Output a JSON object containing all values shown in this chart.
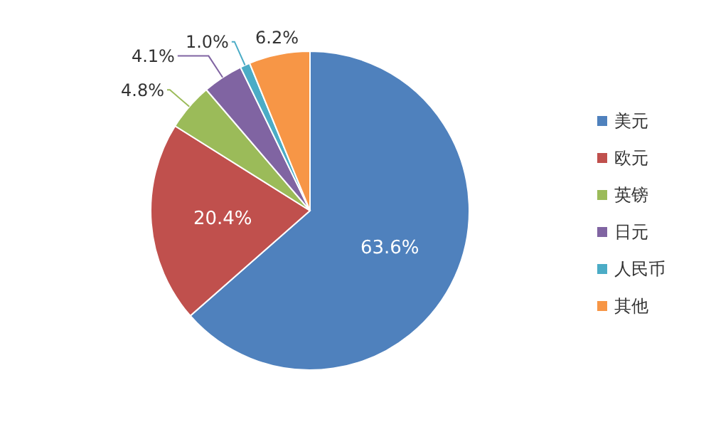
{
  "chart_data": {
    "type": "pie",
    "categories": [
      "美元",
      "欧元",
      "英镑",
      "日元",
      "人民币",
      "其他"
    ],
    "values": [
      63.6,
      20.4,
      4.8,
      4.1,
      1.0,
      6.2
    ],
    "colors": [
      "#4f81bd",
      "#c0504d",
      "#9bbb59",
      "#8064a2",
      "#4bacc6",
      "#f79646"
    ],
    "value_labels": [
      "63.6%",
      "20.4%",
      "4.8%",
      "4.1%",
      "1.0%",
      "6.2%"
    ],
    "legend": "right"
  }
}
